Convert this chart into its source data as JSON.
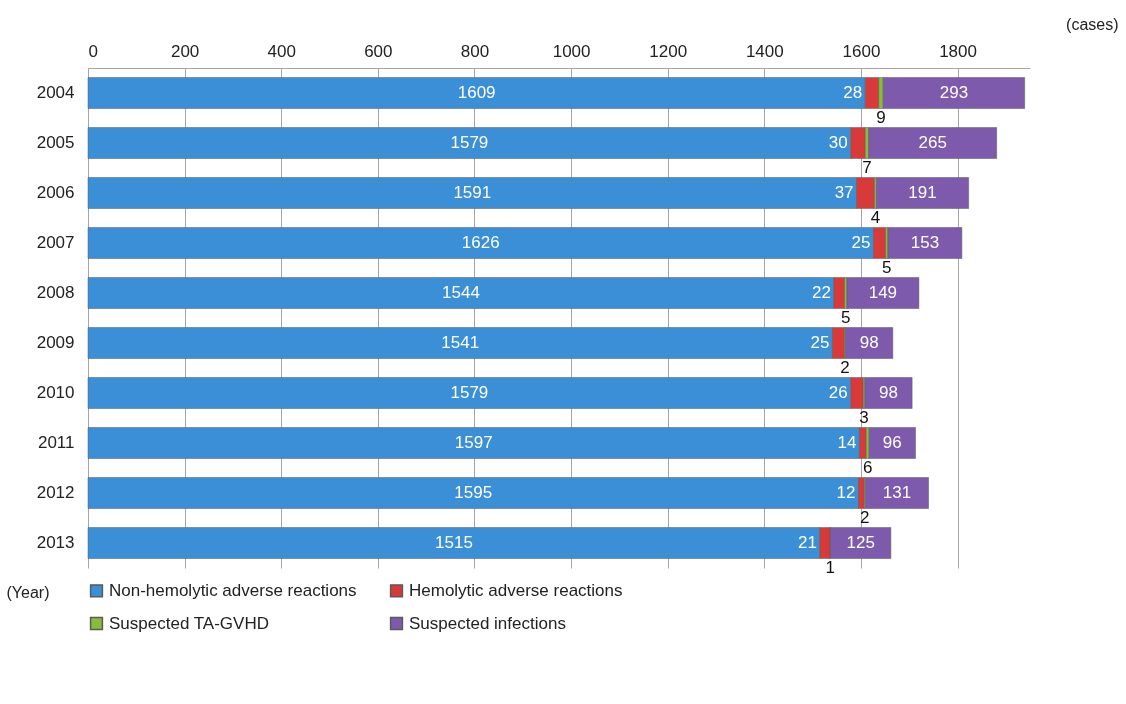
{
  "chart_data": {
    "type": "bar",
    "orientation": "horizontal",
    "stacked": true,
    "data_labels": true,
    "categories": [
      "2004",
      "2005",
      "2006",
      "2007",
      "2008",
      "2009",
      "2010",
      "2011",
      "2012",
      "2013"
    ],
    "series": [
      {
        "name": "Non-hemolytic adverse reactions",
        "color": "#3b8fd6",
        "values": [
          1609,
          1579,
          1591,
          1626,
          1544,
          1541,
          1579,
          1597,
          1595,
          1515
        ]
      },
      {
        "name": "Hemolytic adverse reactions",
        "color": "#d83a3a",
        "values": [
          28,
          30,
          37,
          25,
          22,
          25,
          26,
          14,
          12,
          21
        ]
      },
      {
        "name": "Suspected TA-GVHD",
        "color": "#8cbb3c",
        "values": [
          9,
          7,
          4,
          5,
          5,
          2,
          3,
          6,
          2,
          1
        ]
      },
      {
        "name": "Suspected infections",
        "color": "#7d5aab",
        "values": [
          293,
          265,
          191,
          153,
          149,
          98,
          98,
          96,
          131,
          125
        ]
      }
    ],
    "xlim": [
      0,
      1950
    ],
    "xticks": [
      0,
      200,
      400,
      600,
      800,
      1000,
      1200,
      1400,
      1600,
      1800
    ],
    "xlabel": "(cases)",
    "ylabel": "(Year)",
    "grid": "x",
    "legend": "bottom"
  }
}
